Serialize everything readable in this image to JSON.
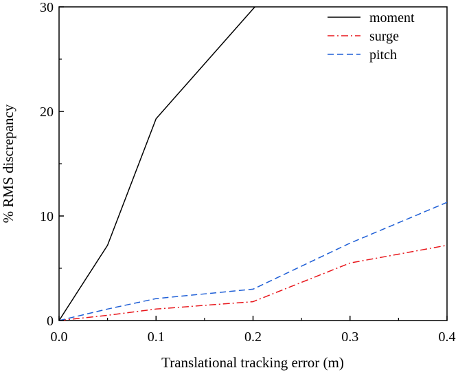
{
  "chart_data": {
    "type": "line",
    "title": "",
    "xlabel": "Translational tracking error (m)",
    "ylabel": "% RMS discrepancy",
    "xlim": [
      0,
      0.4
    ],
    "ylim": [
      0,
      30
    ],
    "x_ticks": [
      "0.0",
      "0.1",
      "0.2",
      "0.3",
      "0.4"
    ],
    "y_ticks": [
      "0",
      "10",
      "20",
      "30"
    ],
    "grid": false,
    "legend_position": "top-right",
    "series": [
      {
        "name": "moment",
        "color": "#000000",
        "dash": "solid",
        "points": [
          [
            0,
            0
          ],
          [
            0.05,
            7.2
          ],
          [
            0.1,
            19.3
          ],
          [
            0.2,
            29.8
          ],
          [
            0.202,
            30
          ]
        ]
      },
      {
        "name": "surge",
        "color": "#e8161b",
        "dash": "dash-dot",
        "points": [
          [
            0,
            0
          ],
          [
            0.05,
            0.5
          ],
          [
            0.1,
            1.1
          ],
          [
            0.2,
            1.8
          ],
          [
            0.3,
            5.5
          ],
          [
            0.4,
            7.2
          ]
        ]
      },
      {
        "name": "pitch",
        "color": "#1f5fd6",
        "dash": "dashed",
        "points": [
          [
            0,
            0
          ],
          [
            0.05,
            1.1
          ],
          [
            0.1,
            2.1
          ],
          [
            0.2,
            3.0
          ],
          [
            0.3,
            7.4
          ],
          [
            0.4,
            11.3
          ]
        ]
      }
    ]
  }
}
